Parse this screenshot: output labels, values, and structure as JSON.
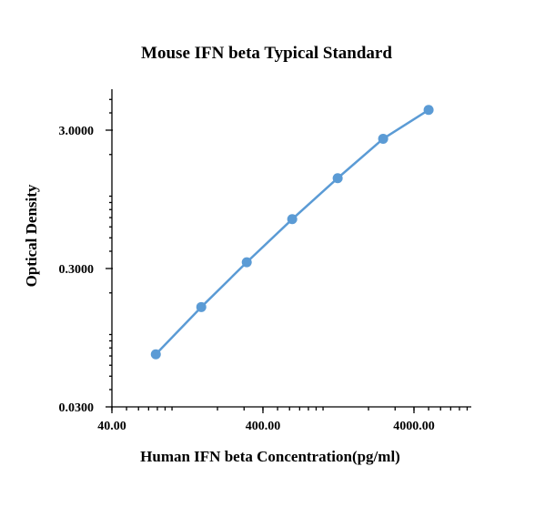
{
  "chart_data": {
    "type": "scatter",
    "title": "Mouse IFN beta Typical Standard",
    "xlabel": "Human IFN beta Concentration(pg/ml)",
    "ylabel": "Optical Density",
    "x_scale": "log",
    "y_scale": "log",
    "xlim": [
      40,
      10000
    ],
    "ylim": [
      0.03,
      5
    ],
    "x_ticks": [
      40,
      400,
      4000
    ],
    "x_tick_labels": [
      "40.00",
      "400.00",
      "4000.00"
    ],
    "y_ticks": [
      0.03,
      0.3,
      3
    ],
    "y_tick_labels": [
      "0.0300",
      "0.3000",
      "3.0000"
    ],
    "grid": false,
    "legend": "none",
    "series": [
      {
        "color": "#5b9bd5",
        "marker": "circle",
        "x": [
          78.13,
          156.25,
          312.5,
          625,
          1250,
          2500,
          5000
        ],
        "y": [
          0.072,
          0.158,
          0.333,
          0.682,
          1.35,
          2.6,
          4.2
        ]
      }
    ]
  }
}
